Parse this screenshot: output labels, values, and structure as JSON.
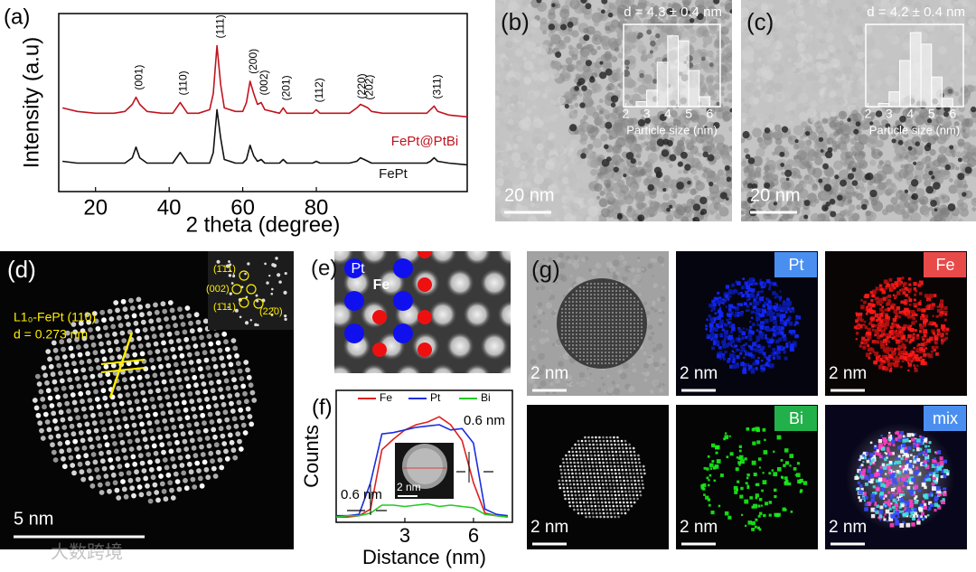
{
  "chart_data": [
    {
      "type": "line",
      "panel": "(a)",
      "xlabel": "2 theta (degree)",
      "ylabel": "Intensity (a.u)",
      "x": [
        11,
        15,
        20,
        25,
        28,
        30,
        31,
        32,
        34,
        38,
        41,
        43,
        45,
        48,
        51,
        52,
        53,
        54,
        55,
        58,
        60,
        61,
        62,
        63,
        64,
        65,
        66,
        68,
        70,
        71,
        72,
        76,
        79,
        80,
        81,
        85,
        89,
        91,
        92,
        93,
        94,
        95,
        98,
        105,
        110,
        111,
        112,
        113,
        116,
        121
      ],
      "xlim": [
        10,
        121
      ],
      "xticks": [
        20,
        40,
        60,
        80
      ],
      "ylim": [
        0,
        100
      ],
      "series": [
        {
          "name": "FePt@PtBi",
          "color": "#c0141e",
          "values": [
            47,
            45,
            44,
            44,
            45,
            49,
            53,
            49,
            45,
            44,
            44,
            50,
            44,
            44,
            46,
            55,
            82,
            60,
            47,
            45,
            45,
            50,
            62,
            55,
            49,
            50,
            46,
            45,
            44,
            47,
            44,
            44,
            44,
            46,
            44,
            44,
            44,
            47,
            49,
            48,
            47,
            45,
            44,
            44,
            44,
            46,
            48,
            45,
            43,
            42
          ]
        },
        {
          "name": "FePt",
          "color": "#111111",
          "values": [
            17,
            16,
            16,
            16,
            16,
            19,
            25,
            19,
            16,
            16,
            16,
            22,
            16,
            16,
            16,
            22,
            46,
            30,
            18,
            16,
            16,
            18,
            26,
            20,
            17,
            18,
            16,
            16,
            16,
            18,
            16,
            16,
            16,
            17,
            16,
            16,
            16,
            17,
            19,
            18,
            17,
            16,
            16,
            16,
            16,
            17,
            19,
            17,
            16,
            15
          ]
        }
      ],
      "annotations": [
        {
          "text": "(001)",
          "x": 31
        },
        {
          "text": "(110)",
          "x": 43
        },
        {
          "text": "(111)",
          "x": 53
        },
        {
          "text": "(200)",
          "x": 62
        },
        {
          "text": "(002)",
          "x": 65
        },
        {
          "text": "(201)",
          "x": 71
        },
        {
          "text": "(112)",
          "x": 80
        },
        {
          "text": "(220)",
          "x": 91.5
        },
        {
          "text": "(202)",
          "x": 93.6
        },
        {
          "text": "(311)",
          "x": 112
        }
      ]
    },
    {
      "type": "histogram",
      "title": "d = 4.3 ± 0.4 nm",
      "xlabel": "Particle size (nm)",
      "bins": [
        2.5,
        3,
        3.5,
        4,
        4.5,
        5,
        5.5,
        6
      ],
      "values": [
        3,
        10,
        27,
        43,
        40,
        22,
        6
      ],
      "xlim": [
        1.9,
        6.5
      ],
      "xticks": [
        2,
        3,
        4,
        5,
        6
      ],
      "ylim": [
        0,
        50
      ]
    },
    {
      "type": "histogram",
      "title": "d = 4.2 ± 0.4 nm",
      "xlabel": "Particle size (nm)",
      "bins": [
        2.5,
        3,
        3.5,
        4,
        4.5,
        5,
        5.5,
        6
      ],
      "values": [
        2,
        9,
        28,
        45,
        38,
        18,
        5
      ],
      "xlim": [
        1.9,
        6.5
      ],
      "xticks": [
        2,
        3,
        4,
        5,
        6
      ],
      "ylim": [
        0,
        50
      ]
    },
    {
      "type": "line",
      "panel": "(f)",
      "xlabel": "Distance (nm)",
      "ylabel": "Counts",
      "legend": "top",
      "x": [
        0,
        0.5,
        1,
        1.5,
        2,
        2.5,
        3,
        3.5,
        4,
        4.5,
        5,
        5.5,
        6,
        6.5,
        7,
        7.5
      ],
      "xlim": [
        0,
        7.7
      ],
      "xticks": [
        3,
        6
      ],
      "ylim": [
        0,
        100
      ],
      "series": [
        {
          "name": "Fe",
          "color": "#e02020",
          "values": [
            4,
            4,
            5,
            10,
            55,
            63,
            70,
            74,
            76,
            80,
            74,
            62,
            30,
            7,
            5,
            4
          ]
        },
        {
          "name": "Pt",
          "color": "#1a2ee0",
          "values": [
            5,
            5,
            6,
            30,
            67,
            68,
            70,
            72,
            73,
            74,
            70,
            71,
            60,
            10,
            6,
            5
          ]
        },
        {
          "name": "Bi",
          "color": "#22cc22",
          "values": [
            4,
            5,
            5,
            7,
            13,
            13,
            12,
            13,
            14,
            12,
            13,
            12,
            11,
            6,
            5,
            4
          ]
        }
      ],
      "annotations": [
        {
          "text": "0.6 nm"
        },
        {
          "text": "0.6 nm"
        }
      ],
      "inset_scale_bar": "2 nm"
    }
  ],
  "panels": {
    "b": {
      "label": "(b)",
      "scale_bar": "20 nm"
    },
    "c": {
      "label": "(c)",
      "scale_bar": "20 nm"
    },
    "d": {
      "label": "(d)",
      "annotation": "L1₀-FePt (110)",
      "spacing": "d = 0.273 nm",
      "scale_bar": "5 nm",
      "fft_labels": [
        "(1̄11)",
        "(002)",
        "(1̄11)",
        "(22̄0)"
      ]
    },
    "e": {
      "label": "(e)",
      "atoms": [
        "Pt",
        "Fe"
      ]
    },
    "g": {
      "label": "(g)",
      "maps": [
        {
          "scale_bar": "2 nm"
        },
        {
          "tag": "Pt",
          "scale_bar": "2 nm"
        },
        {
          "tag": "Fe",
          "scale_bar": "2 nm"
        },
        {
          "scale_bar": "2 nm"
        },
        {
          "tag": "Bi",
          "scale_bar": "2 nm"
        },
        {
          "tag": "mix",
          "scale_bar": "2 nm"
        }
      ]
    }
  },
  "watermark": "大数跨境"
}
